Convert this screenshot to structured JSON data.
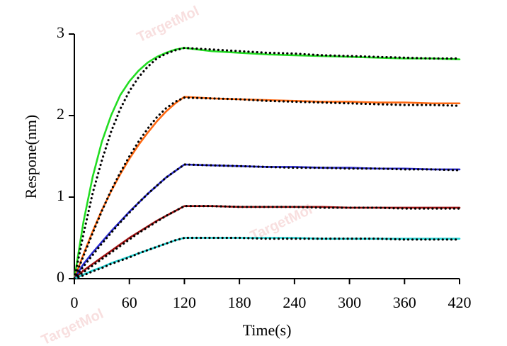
{
  "chart_data": {
    "type": "line",
    "xlabel": "Time(s)",
    "ylabel": "Respone(nm)",
    "watermark": "TargetMol",
    "x": [
      0,
      10,
      20,
      30,
      40,
      50,
      60,
      70,
      80,
      90,
      100,
      110,
      120,
      150,
      180,
      210,
      240,
      270,
      300,
      330,
      360,
      390,
      420
    ],
    "xlim": [
      0,
      420
    ],
    "xticks": [
      0,
      60,
      120,
      180,
      240,
      300,
      360,
      420
    ],
    "ylim": [
      0,
      3
    ],
    "yticks": [
      0,
      1,
      2,
      3
    ],
    "series": [
      {
        "color": "#22dd22",
        "style": "solid",
        "values": [
          0,
          0.7,
          1.25,
          1.68,
          2.0,
          2.25,
          2.42,
          2.55,
          2.65,
          2.72,
          2.77,
          2.81,
          2.83,
          2.79,
          2.77,
          2.75,
          2.74,
          2.73,
          2.72,
          2.71,
          2.7,
          2.7,
          2.69
        ]
      },
      {
        "color": "#000000",
        "style": "dotted",
        "values": [
          0,
          0.55,
          1.05,
          1.45,
          1.8,
          2.08,
          2.3,
          2.47,
          2.6,
          2.7,
          2.76,
          2.8,
          2.83,
          2.81,
          2.79,
          2.77,
          2.76,
          2.74,
          2.73,
          2.72,
          2.71,
          2.7,
          2.7
        ]
      },
      {
        "color": "#ff6a13",
        "style": "solid",
        "values": [
          0,
          0.3,
          0.58,
          0.84,
          1.07,
          1.28,
          1.47,
          1.64,
          1.79,
          1.93,
          2.05,
          2.15,
          2.23,
          2.21,
          2.2,
          2.19,
          2.18,
          2.17,
          2.17,
          2.16,
          2.16,
          2.15,
          2.15
        ]
      },
      {
        "color": "#000000",
        "style": "dotted",
        "values": [
          0,
          0.28,
          0.56,
          0.83,
          1.08,
          1.3,
          1.5,
          1.68,
          1.84,
          1.98,
          2.09,
          2.17,
          2.22,
          2.21,
          2.2,
          2.18,
          2.17,
          2.16,
          2.15,
          2.14,
          2.13,
          2.13,
          2.12
        ]
      },
      {
        "color": "#2a2ad0",
        "style": "solid",
        "values": [
          0,
          0.18,
          0.32,
          0.45,
          0.58,
          0.7,
          0.82,
          0.93,
          1.04,
          1.14,
          1.24,
          1.32,
          1.4,
          1.39,
          1.38,
          1.37,
          1.37,
          1.36,
          1.36,
          1.35,
          1.35,
          1.34,
          1.34
        ]
      },
      {
        "color": "#000000",
        "style": "dotted",
        "values": [
          0,
          0.15,
          0.29,
          0.43,
          0.56,
          0.69,
          0.81,
          0.93,
          1.04,
          1.14,
          1.24,
          1.32,
          1.4,
          1.39,
          1.38,
          1.37,
          1.36,
          1.36,
          1.35,
          1.35,
          1.34,
          1.34,
          1.33
        ]
      },
      {
        "color": "#a01010",
        "style": "solid",
        "values": [
          0,
          0.1,
          0.18,
          0.26,
          0.34,
          0.42,
          0.5,
          0.57,
          0.64,
          0.71,
          0.77,
          0.83,
          0.89,
          0.89,
          0.88,
          0.88,
          0.88,
          0.88,
          0.87,
          0.87,
          0.87,
          0.87,
          0.87
        ]
      },
      {
        "color": "#000000",
        "style": "dotted",
        "values": [
          0,
          0.08,
          0.16,
          0.24,
          0.32,
          0.4,
          0.48,
          0.56,
          0.63,
          0.7,
          0.77,
          0.83,
          0.89,
          0.89,
          0.88,
          0.88,
          0.88,
          0.87,
          0.87,
          0.87,
          0.86,
          0.86,
          0.86
        ]
      },
      {
        "color": "#22d6d6",
        "style": "solid",
        "values": [
          0,
          0.05,
          0.1,
          0.14,
          0.19,
          0.23,
          0.27,
          0.31,
          0.35,
          0.39,
          0.43,
          0.47,
          0.5,
          0.5,
          0.5,
          0.5,
          0.5,
          0.49,
          0.49,
          0.49,
          0.49,
          0.49,
          0.49
        ]
      },
      {
        "color": "#000000",
        "style": "dotted",
        "values": [
          0,
          0.04,
          0.09,
          0.13,
          0.18,
          0.22,
          0.26,
          0.31,
          0.35,
          0.39,
          0.43,
          0.47,
          0.5,
          0.5,
          0.5,
          0.49,
          0.49,
          0.49,
          0.49,
          0.49,
          0.48,
          0.48,
          0.48
        ]
      }
    ]
  }
}
